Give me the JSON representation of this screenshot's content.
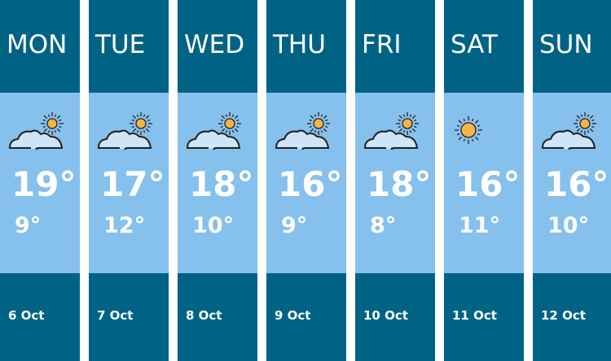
{
  "colors": {
    "header": "#006385",
    "body": "#86c0ec",
    "sun": "#f6b445",
    "cloud": "#cfe4f7"
  },
  "days": [
    {
      "day": "MON",
      "high": "19°",
      "low": "9°",
      "date": "6 Oct",
      "icon": "partly-cloudy-icon"
    },
    {
      "day": "TUE",
      "high": "17°",
      "low": "12°",
      "date": "7 Oct",
      "icon": "partly-cloudy-icon"
    },
    {
      "day": "WED",
      "high": "18°",
      "low": "10°",
      "date": "8 Oct",
      "icon": "partly-cloudy-icon"
    },
    {
      "day": "THU",
      "high": "16°",
      "low": "9°",
      "date": "9 Oct",
      "icon": "partly-cloudy-icon"
    },
    {
      "day": "FRI",
      "high": "18°",
      "low": "8°",
      "date": "10 Oct",
      "icon": "partly-cloudy-icon"
    },
    {
      "day": "SAT",
      "high": "16°",
      "low": "11°",
      "date": "11 Oct",
      "icon": "sun-icon"
    },
    {
      "day": "SUN",
      "high": "16°",
      "low": "10°",
      "date": "12 Oct",
      "icon": "partly-cloudy-icon"
    }
  ]
}
